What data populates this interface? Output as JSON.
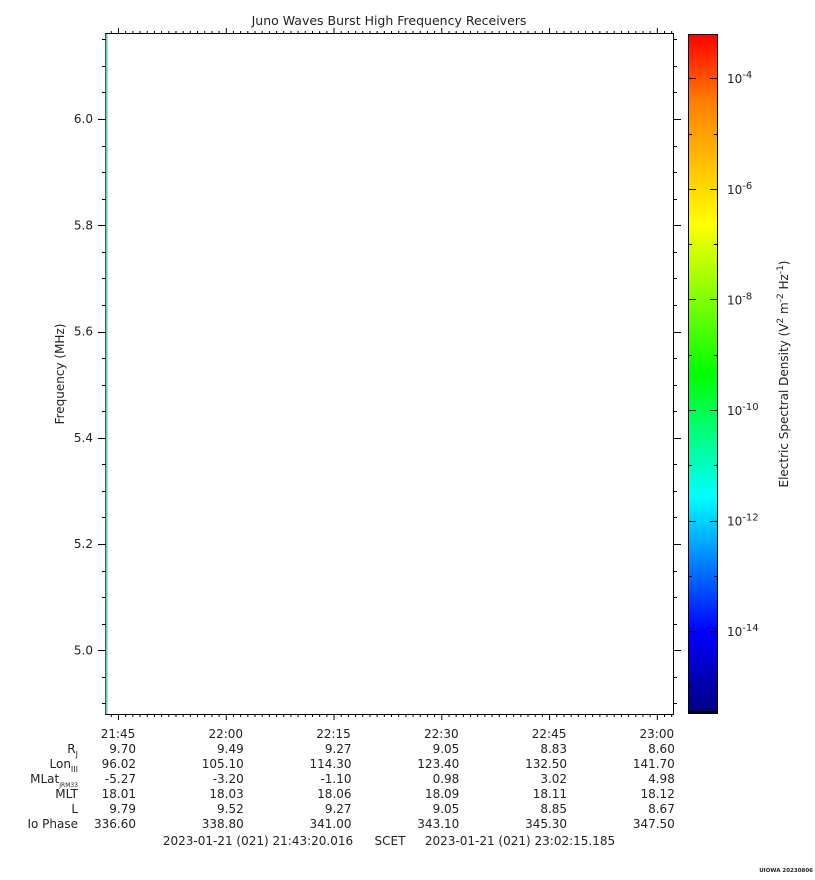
{
  "chart_data": {
    "type": "heatmap",
    "title": "Juno Waves Burst High Frequency Receivers",
    "ylabel": "Frequency (MHz)",
    "y_ticks": [
      5.0,
      5.2,
      5.4,
      5.6,
      5.8,
      6.0
    ],
    "y_tick_labels": [
      "5.0",
      "5.2",
      "5.4",
      "5.6",
      "5.8",
      "6.0"
    ],
    "ylim": [
      4.88,
      6.16
    ],
    "x_range": [
      "21:43:20.016",
      "23:02:15.185"
    ],
    "x_tick_labels": [
      "21:45",
      "22:00",
      "22:15",
      "22:30",
      "22:45",
      "23:00"
    ],
    "x_tick_minutes": [
      1305,
      1320,
      1335,
      1350,
      1365,
      1380
    ],
    "xlim_minutes": [
      1303.33,
      1382.25
    ],
    "data_column": {
      "time_minutes": 1303.45,
      "color": "#5fd0a0"
    },
    "colorbar": {
      "label_main": "Electric Spectral Density (V",
      "label_sup1": "2",
      "label_mid1": " m",
      "label_sup2": "-2",
      "label_mid2": " Hz",
      "label_sup3": "-1",
      "label_end": ")",
      "scale": "log",
      "range_exp": [
        -15.5,
        -3.2
      ],
      "tick_base": "10",
      "tick_exponents": [
        "-4",
        "-6",
        "-8",
        "-10",
        "-12",
        "-14"
      ],
      "tick_values": [
        -4,
        -6,
        -8,
        -10,
        -12,
        -14
      ]
    },
    "ephemeris": {
      "rows": [
        {
          "label": "R",
          "sub": "J",
          "values": [
            "9.70",
            "9.49",
            "9.27",
            "9.05",
            "8.83",
            "8.60"
          ]
        },
        {
          "label": "Lon",
          "sub": "III",
          "values": [
            "96.02",
            "105.10",
            "114.30",
            "123.40",
            "132.50",
            "141.70"
          ]
        },
        {
          "label": "MLat",
          "sub": "JRM33",
          "values": [
            "-5.27",
            "-3.20",
            "-1.10",
            "0.98",
            "3.02",
            "4.98"
          ]
        },
        {
          "label": "MLT",
          "sub": "",
          "values": [
            "18.01",
            "18.03",
            "18.06",
            "18.09",
            "18.11",
            "18.12"
          ]
        },
        {
          "label": "L",
          "sub": "",
          "values": [
            "9.79",
            "9.52",
            "9.27",
            "9.05",
            "8.85",
            "8.67"
          ]
        },
        {
          "label": "Io Phase",
          "sub": "",
          "values": [
            "336.60",
            "338.80",
            "341.00",
            "343.10",
            "345.30",
            "347.50"
          ]
        }
      ]
    },
    "time_span": {
      "start": "2023-01-21 (021) 21:43:20.016",
      "label": "SCET",
      "end": "2023-01-21 (021) 23:02:15.185"
    },
    "footer": "UIOWA 20230806"
  }
}
